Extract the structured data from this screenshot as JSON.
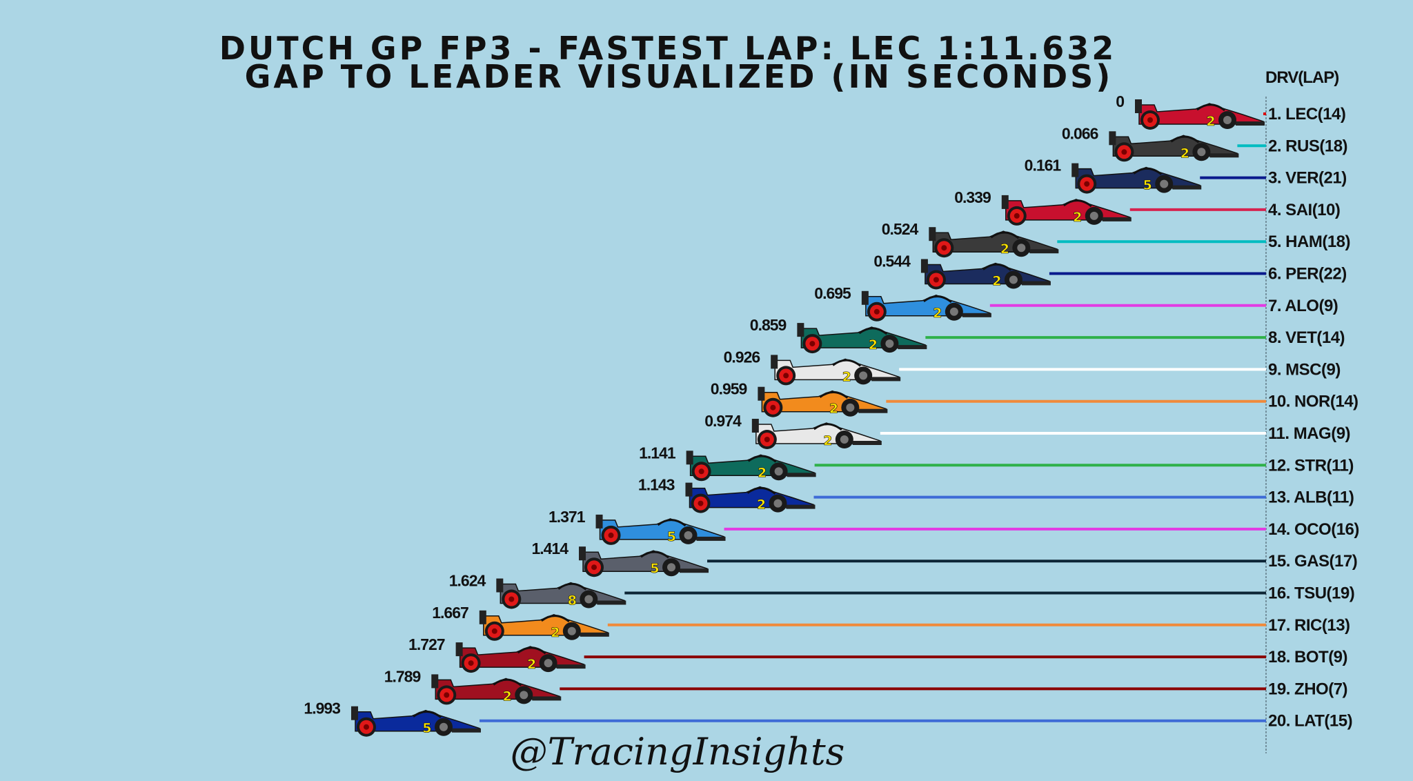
{
  "chart_data": {
    "type": "bar",
    "title": "Dutch GP FP3 - Fastest Lap: LEC 1:11.632",
    "subtitle": "Gap to leader visualized (in seconds)",
    "column_header": "DRV(LAP)",
    "watermark": "@TracingInsights",
    "orientation": "horizontal",
    "reversed": true,
    "rows": [
      {
        "label": "1. LEC(14)",
        "gap": 0,
        "gap_text": "0",
        "color": "#dc0000",
        "car": "#c8102e",
        "tyre": "2"
      },
      {
        "label": "2. RUS(18)",
        "gap": 0.066,
        "gap_text": "0.066",
        "color": "#00bcc0",
        "car": "#3a3a3a",
        "tyre": "2"
      },
      {
        "label": "3. VER(21)",
        "gap": 0.161,
        "gap_text": "0.161",
        "color": "#0a1a8c",
        "car": "#1b2c5e",
        "tyre": "5"
      },
      {
        "label": "4. SAI(10)",
        "gap": 0.339,
        "gap_text": "0.339",
        "color": "#d6234f",
        "car": "#c8102e",
        "tyre": "2"
      },
      {
        "label": "5. HAM(18)",
        "gap": 0.524,
        "gap_text": "0.524",
        "color": "#00bcc0",
        "car": "#3a3a3a",
        "tyre": "2"
      },
      {
        "label": "6. PER(22)",
        "gap": 0.544,
        "gap_text": "0.544",
        "color": "#0a1a8c",
        "car": "#1b2c5e",
        "tyre": "2"
      },
      {
        "label": "7. ALO(9)",
        "gap": 0.695,
        "gap_text": "0.695",
        "color": "#e23be3",
        "car": "#2f8fde",
        "tyre": "2"
      },
      {
        "label": "8. VET(14)",
        "gap": 0.859,
        "gap_text": "0.859",
        "color": "#2fb14a",
        "car": "#0e6b5c",
        "tyre": "2"
      },
      {
        "label": "9. MSC(9)",
        "gap": 0.926,
        "gap_text": "0.926",
        "color": "#ffffff",
        "car": "#e8e8e8",
        "tyre": "2"
      },
      {
        "label": "10. NOR(14)",
        "gap": 0.959,
        "gap_text": "0.959",
        "color": "#f08a3a",
        "car": "#f28b1d",
        "tyre": "2"
      },
      {
        "label": "11. MAG(9)",
        "gap": 0.974,
        "gap_text": "0.974",
        "color": "#ffffff",
        "car": "#e8e8e8",
        "tyre": "2"
      },
      {
        "label": "12. STR(11)",
        "gap": 1.141,
        "gap_text": "1.141",
        "color": "#2fb14a",
        "car": "#0e6b5c",
        "tyre": "2"
      },
      {
        "label": "13. ALB(11)",
        "gap": 1.143,
        "gap_text": "1.143",
        "color": "#3e6bd6",
        "car": "#0a2a9c",
        "tyre": "2"
      },
      {
        "label": "14. OCO(16)",
        "gap": 1.371,
        "gap_text": "1.371",
        "color": "#e23be3",
        "car": "#2f8fde",
        "tyre": "5"
      },
      {
        "label": "15. GAS(17)",
        "gap": 1.414,
        "gap_text": "1.414",
        "color": "#0d2535",
        "car": "#5a5f6b",
        "tyre": "5"
      },
      {
        "label": "16. TSU(19)",
        "gap": 1.624,
        "gap_text": "1.624",
        "color": "#0d2535",
        "car": "#5a5f6b",
        "tyre": "8"
      },
      {
        "label": "17. RIC(13)",
        "gap": 1.667,
        "gap_text": "1.667",
        "color": "#f08a3a",
        "car": "#f28b1d",
        "tyre": "2"
      },
      {
        "label": "18. BOT(9)",
        "gap": 1.727,
        "gap_text": "1.727",
        "color": "#8b0000",
        "car": "#a01020",
        "tyre": "2"
      },
      {
        "label": "19. ZHO(7)",
        "gap": 1.789,
        "gap_text": "1.789",
        "color": "#8b0000",
        "car": "#a01020",
        "tyre": "2"
      },
      {
        "label": "20. LAT(15)",
        "gap": 1.993,
        "gap_text": "1.993",
        "color": "#3e6bd6",
        "car": "#0a2a9c",
        "tyre": "5"
      }
    ]
  }
}
